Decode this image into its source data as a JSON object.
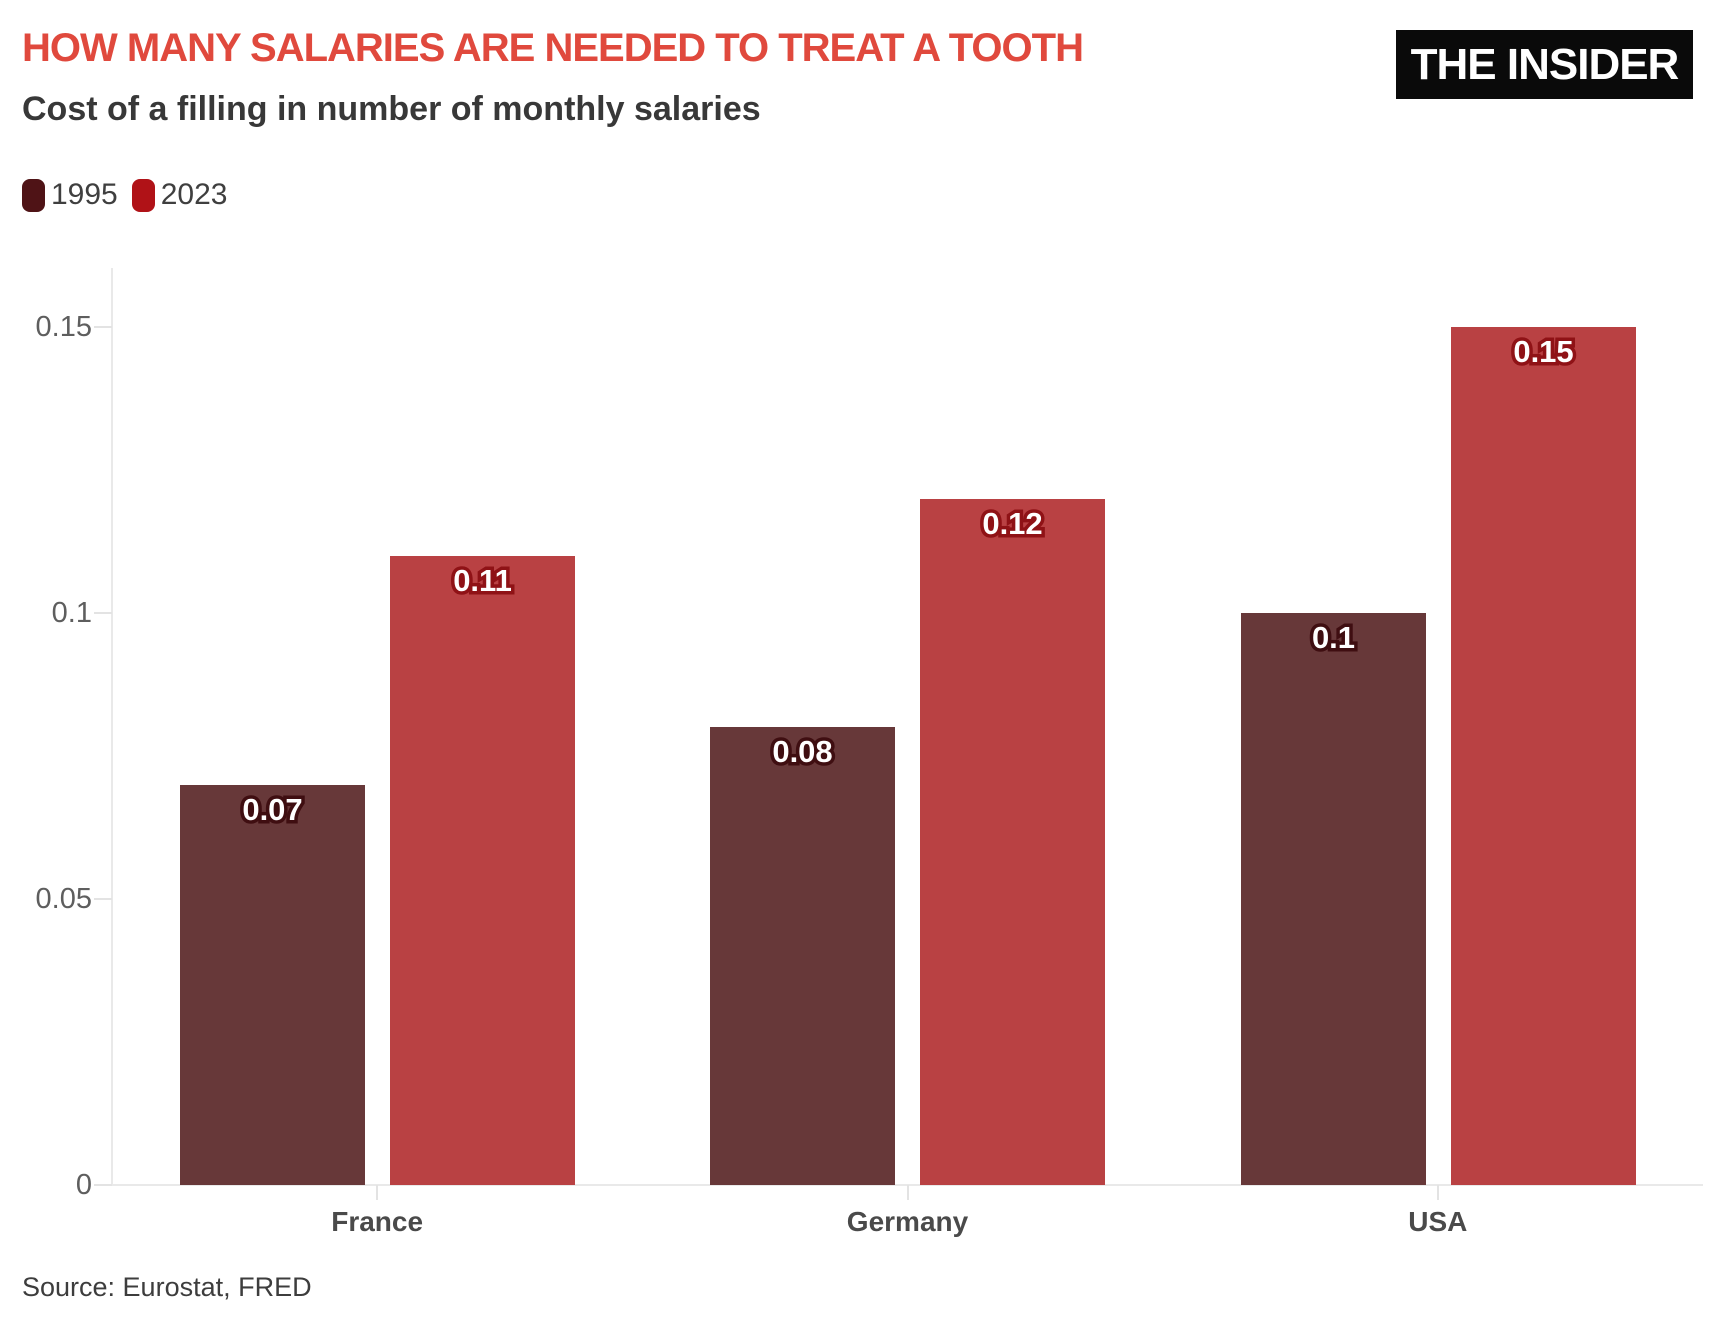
{
  "header": {
    "title": "HOW MANY SALARIES ARE NEEDED TO TREAT A TOOTH",
    "subtitle": "Cost of a filling in number of monthly salaries",
    "logo_text": "THE INSIDER"
  },
  "colors": {
    "title_accent": "#e0493d",
    "logo_background": "#0a0a0a",
    "logo_text": "#ffffff",
    "axis": "#e9e9e9",
    "tick_label": "#5e5e5e",
    "category_label": "#4a4a4a",
    "value_label_fill": "#ffffff"
  },
  "legend": {
    "items": [
      {
        "label": "1995",
        "swatch_color": "#4f1316"
      },
      {
        "label": "2023",
        "swatch_color": "#b01217"
      }
    ]
  },
  "chart_data": {
    "type": "bar",
    "title": "HOW MANY SALARIES ARE NEEDED TO TREAT A TOOTH",
    "subtitle": "Cost of a filling in number of monthly salaries",
    "categories": [
      "France",
      "Germany",
      "USA"
    ],
    "series": [
      {
        "name": "1995",
        "color": "#673839",
        "label_outline": "#3f0e11",
        "values": [
          0.07,
          0.08,
          0.1
        ]
      },
      {
        "name": "2023",
        "color": "#b94143",
        "label_outline": "#8f1216",
        "values": [
          0.11,
          0.12,
          0.15
        ]
      }
    ],
    "value_labels": [
      [
        "0.07",
        "0.08",
        "0.1"
      ],
      [
        "0.11",
        "0.12",
        "0.15"
      ]
    ],
    "xlabel": "",
    "ylabel": "",
    "ylim": [
      0,
      0.15
    ],
    "yticks": [
      0,
      0.05,
      0.1,
      0.15
    ],
    "ytick_labels": [
      "0",
      "0.05",
      "0.1",
      "0.15"
    ],
    "grid": "off",
    "legend_position": "top-left",
    "bar_value_labels_visible": true
  },
  "source": "Source: Eurostat, FRED"
}
